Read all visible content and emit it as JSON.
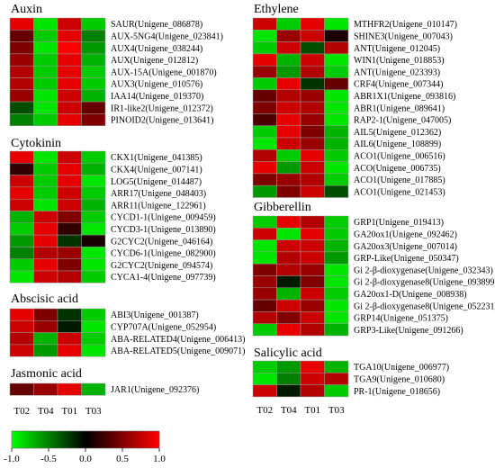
{
  "chart_data": {
    "type": "heatmap",
    "columns": [
      "T02",
      "T04",
      "T01",
      "T03"
    ],
    "color_scale": {
      "min": -1.0,
      "max": 1.0,
      "stops": [
        {
          "value": -1.0,
          "color": "#00ff00"
        },
        {
          "value": 0.0,
          "color": "#000000"
        },
        {
          "value": 1.0,
          "color": "#ff0000"
        }
      ],
      "ticks": [
        "-1.0",
        "-0.5",
        "0.0",
        "0.5",
        "1.0"
      ]
    },
    "panels": [
      {
        "title": "Auxin",
        "rows": [
          {
            "gene": "SAUR(Unigene_086878)",
            "values": [
              0.9,
              -0.9,
              0.8,
              -0.8
            ]
          },
          {
            "gene": "AUX-5NG4(Unigene_023841)",
            "values": [
              0.4,
              -0.8,
              0.9,
              -0.5
            ]
          },
          {
            "gene": "AUX4(Unigene_038244)",
            "values": [
              0.5,
              -0.9,
              1.0,
              -0.6
            ]
          },
          {
            "gene": "AUX(Unigene_012812)",
            "values": [
              0.6,
              -0.8,
              0.9,
              -0.7
            ]
          },
          {
            "gene": "AUX-15A(Unigene_001870)",
            "values": [
              0.7,
              -0.8,
              0.9,
              -0.8
            ]
          },
          {
            "gene": "AUX3(Unigene_010576)",
            "values": [
              0.7,
              -0.8,
              0.9,
              -0.8
            ]
          },
          {
            "gene": "IAA14(Unigene_019370)",
            "values": [
              0.6,
              -0.9,
              0.8,
              -0.7
            ]
          },
          {
            "gene": "IR1-like2(Unigene_012372)",
            "values": [
              -0.3,
              -0.9,
              0.8,
              0.4
            ]
          },
          {
            "gene": "PINOID2(Unigene_013641)",
            "values": [
              -0.5,
              -0.8,
              0.9,
              0.5
            ]
          }
        ]
      },
      {
        "title": "Cytokinin",
        "rows": [
          {
            "gene": "CKX1(Unigene_041385)",
            "values": [
              0.9,
              -0.9,
              0.8,
              -0.8
            ]
          },
          {
            "gene": "CKX4(Unigene_007141)",
            "values": [
              0.2,
              -0.8,
              0.9,
              -0.7
            ]
          },
          {
            "gene": "LOG5(Unigene_014487)",
            "values": [
              0.8,
              -0.8,
              0.9,
              -0.9
            ]
          },
          {
            "gene": "ARR17(Unigene_048403)",
            "values": [
              0.9,
              -0.8,
              0.8,
              -0.8
            ]
          },
          {
            "gene": "ARR11(Unigene_122961)",
            "values": [
              0.8,
              -0.9,
              0.8,
              -0.7
            ]
          },
          {
            "gene": "CYCD1-1(Unigene_009459)",
            "values": [
              -0.7,
              0.8,
              0.5,
              -0.8
            ]
          },
          {
            "gene": "CYCD3-1(Unigene_013890)",
            "values": [
              -0.8,
              0.9,
              0.2,
              -0.9
            ]
          },
          {
            "gene": "G2CYC2(Unigene_046164)",
            "values": [
              -0.6,
              0.9,
              -0.2,
              0.1
            ]
          },
          {
            "gene": "CYCD6-1(Unigene_082900)",
            "values": [
              -0.5,
              0.7,
              0.6,
              -0.9
            ]
          },
          {
            "gene": "G2CYC2(Unigene_094574)",
            "values": [
              -0.8,
              0.9,
              0.5,
              -0.9
            ]
          },
          {
            "gene": "CYCA1-4(Unigene_097739)",
            "values": [
              -0.9,
              0.8,
              0.7,
              -0.8
            ]
          }
        ]
      },
      {
        "title": "Abscisic acid",
        "rows": [
          {
            "gene": "ABI3(Unigene_001387)",
            "values": [
              0.9,
              0.5,
              -0.2,
              -0.8
            ]
          },
          {
            "gene": "CYP707A(Unigene_052954)",
            "values": [
              0.8,
              0.6,
              -0.1,
              -0.9
            ]
          },
          {
            "gene": "ABA-RELATED4(Unigene_006413)",
            "values": [
              0.7,
              -0.7,
              0.8,
              -0.8
            ]
          },
          {
            "gene": "ABA-RELATED5(Unigene_009071)",
            "values": [
              0.8,
              -0.6,
              0.9,
              -0.9
            ]
          }
        ]
      },
      {
        "title": "Jasmonic acid",
        "rows": [
          {
            "gene": "JAR1(Unigene_092376)",
            "values": [
              0.4,
              0.6,
              0.9,
              -0.7
            ]
          }
        ]
      },
      {
        "title": "Ethylene",
        "rows": [
          {
            "gene": "MTHFR2(Unigene_010147)",
            "values": [
              0.8,
              -0.8,
              0.9,
              -0.9
            ]
          },
          {
            "gene": "SHINE3(Unigene_007043)",
            "values": [
              -0.9,
              0.6,
              0.8,
              0.1
            ]
          },
          {
            "gene": "ANT(Unigene_012045)",
            "values": [
              -0.8,
              0.8,
              -0.3,
              0.7
            ]
          },
          {
            "gene": "WIN1(Unigene_018853)",
            "values": [
              0.9,
              -0.7,
              0.8,
              -0.9
            ]
          },
          {
            "gene": "ANT(Unigene_023393)",
            "values": [
              0.6,
              -0.6,
              0.7,
              -0.8
            ]
          },
          {
            "gene": "CRF4(Unigene_007344)",
            "values": [
              -0.8,
              0.9,
              -0.2,
              0.4
            ]
          },
          {
            "gene": "ABR1X1(Unigene_093816)",
            "values": [
              0.4,
              0.7,
              0.6,
              -0.9
            ]
          },
          {
            "gene": "ABR1(Unigene_089641)",
            "values": [
              0.5,
              0.8,
              0.7,
              -0.9
            ]
          },
          {
            "gene": "RAP2-1(Unigene_047005)",
            "values": [
              0.3,
              0.9,
              0.6,
              -0.9
            ]
          },
          {
            "gene": "AIL5(Unigene_012362)",
            "values": [
              -0.8,
              0.9,
              0.5,
              -0.7
            ]
          },
          {
            "gene": "AIL6(Unigene_108899)",
            "values": [
              -0.9,
              0.8,
              0.6,
              -0.7
            ]
          },
          {
            "gene": "ACO1(Unigene_006516)",
            "values": [
              0.7,
              -0.8,
              0.9,
              -0.8
            ]
          },
          {
            "gene": "ACO(Unigene_006735)",
            "values": [
              0.9,
              -0.6,
              0.8,
              -0.9
            ]
          },
          {
            "gene": "ACO1(Unigene_017885)",
            "values": [
              0.5,
              0.6,
              0.7,
              -0.8
            ]
          },
          {
            "gene": "ACO1(Unigene_021453)",
            "values": [
              -0.6,
              0.5,
              0.8,
              -0.3
            ]
          }
        ]
      },
      {
        "title": "Gibberellin",
        "rows": [
          {
            "gene": "GRP1(Unigene_019413)",
            "values": [
              -0.8,
              0.9,
              0.7,
              -0.8
            ]
          },
          {
            "gene": "GA20ox1(Unigene_092462)",
            "values": [
              0.8,
              -0.9,
              0.9,
              -0.8
            ]
          },
          {
            "gene": "GA20ox3(Unigene_007014)",
            "values": [
              -0.9,
              0.8,
              0.8,
              -0.7
            ]
          },
          {
            "gene": "GRP-Like(Unigene_050347)",
            "values": [
              -0.9,
              0.7,
              0.8,
              -0.6
            ]
          },
          {
            "gene": "Gi 2-β-dioxygenase(Unigene_032343)",
            "values": [
              0.5,
              0.7,
              0.6,
              -0.9
            ]
          },
          {
            "gene": "Gi 2-β-dioxygenase8(Unigene_093899)",
            "values": [
              0.6,
              -0.1,
              0.5,
              -0.9
            ]
          },
          {
            "gene": "GA20ox1-D(Unigene_008938)",
            "values": [
              0.6,
              -0.7,
              0.8,
              -0.8
            ]
          },
          {
            "gene": "Gi 2-β-dioxygenase8(Unigene_052231)",
            "values": [
              0.4,
              0.8,
              0.6,
              -0.9
            ]
          },
          {
            "gene": "GRP14(Unigene_051375)",
            "values": [
              0.7,
              0.5,
              0.8,
              -0.9
            ]
          },
          {
            "gene": "GRP3-Like(Unigene_091266)",
            "values": [
              -0.8,
              0.9,
              0.7,
              -0.7
            ]
          }
        ]
      },
      {
        "title": "Salicylic acid",
        "rows": [
          {
            "gene": "TGA10(Unigene_006977)",
            "values": [
              -0.8,
              -0.6,
              0.9,
              -0.7
            ]
          },
          {
            "gene": "TGA9(Unigene_010680)",
            "values": [
              -0.9,
              -0.5,
              0.8,
              0.7
            ]
          },
          {
            "gene": "PR-1(Unigene_018656)",
            "values": [
              0.8,
              -0.1,
              0.7,
              -0.8
            ]
          }
        ]
      }
    ]
  }
}
